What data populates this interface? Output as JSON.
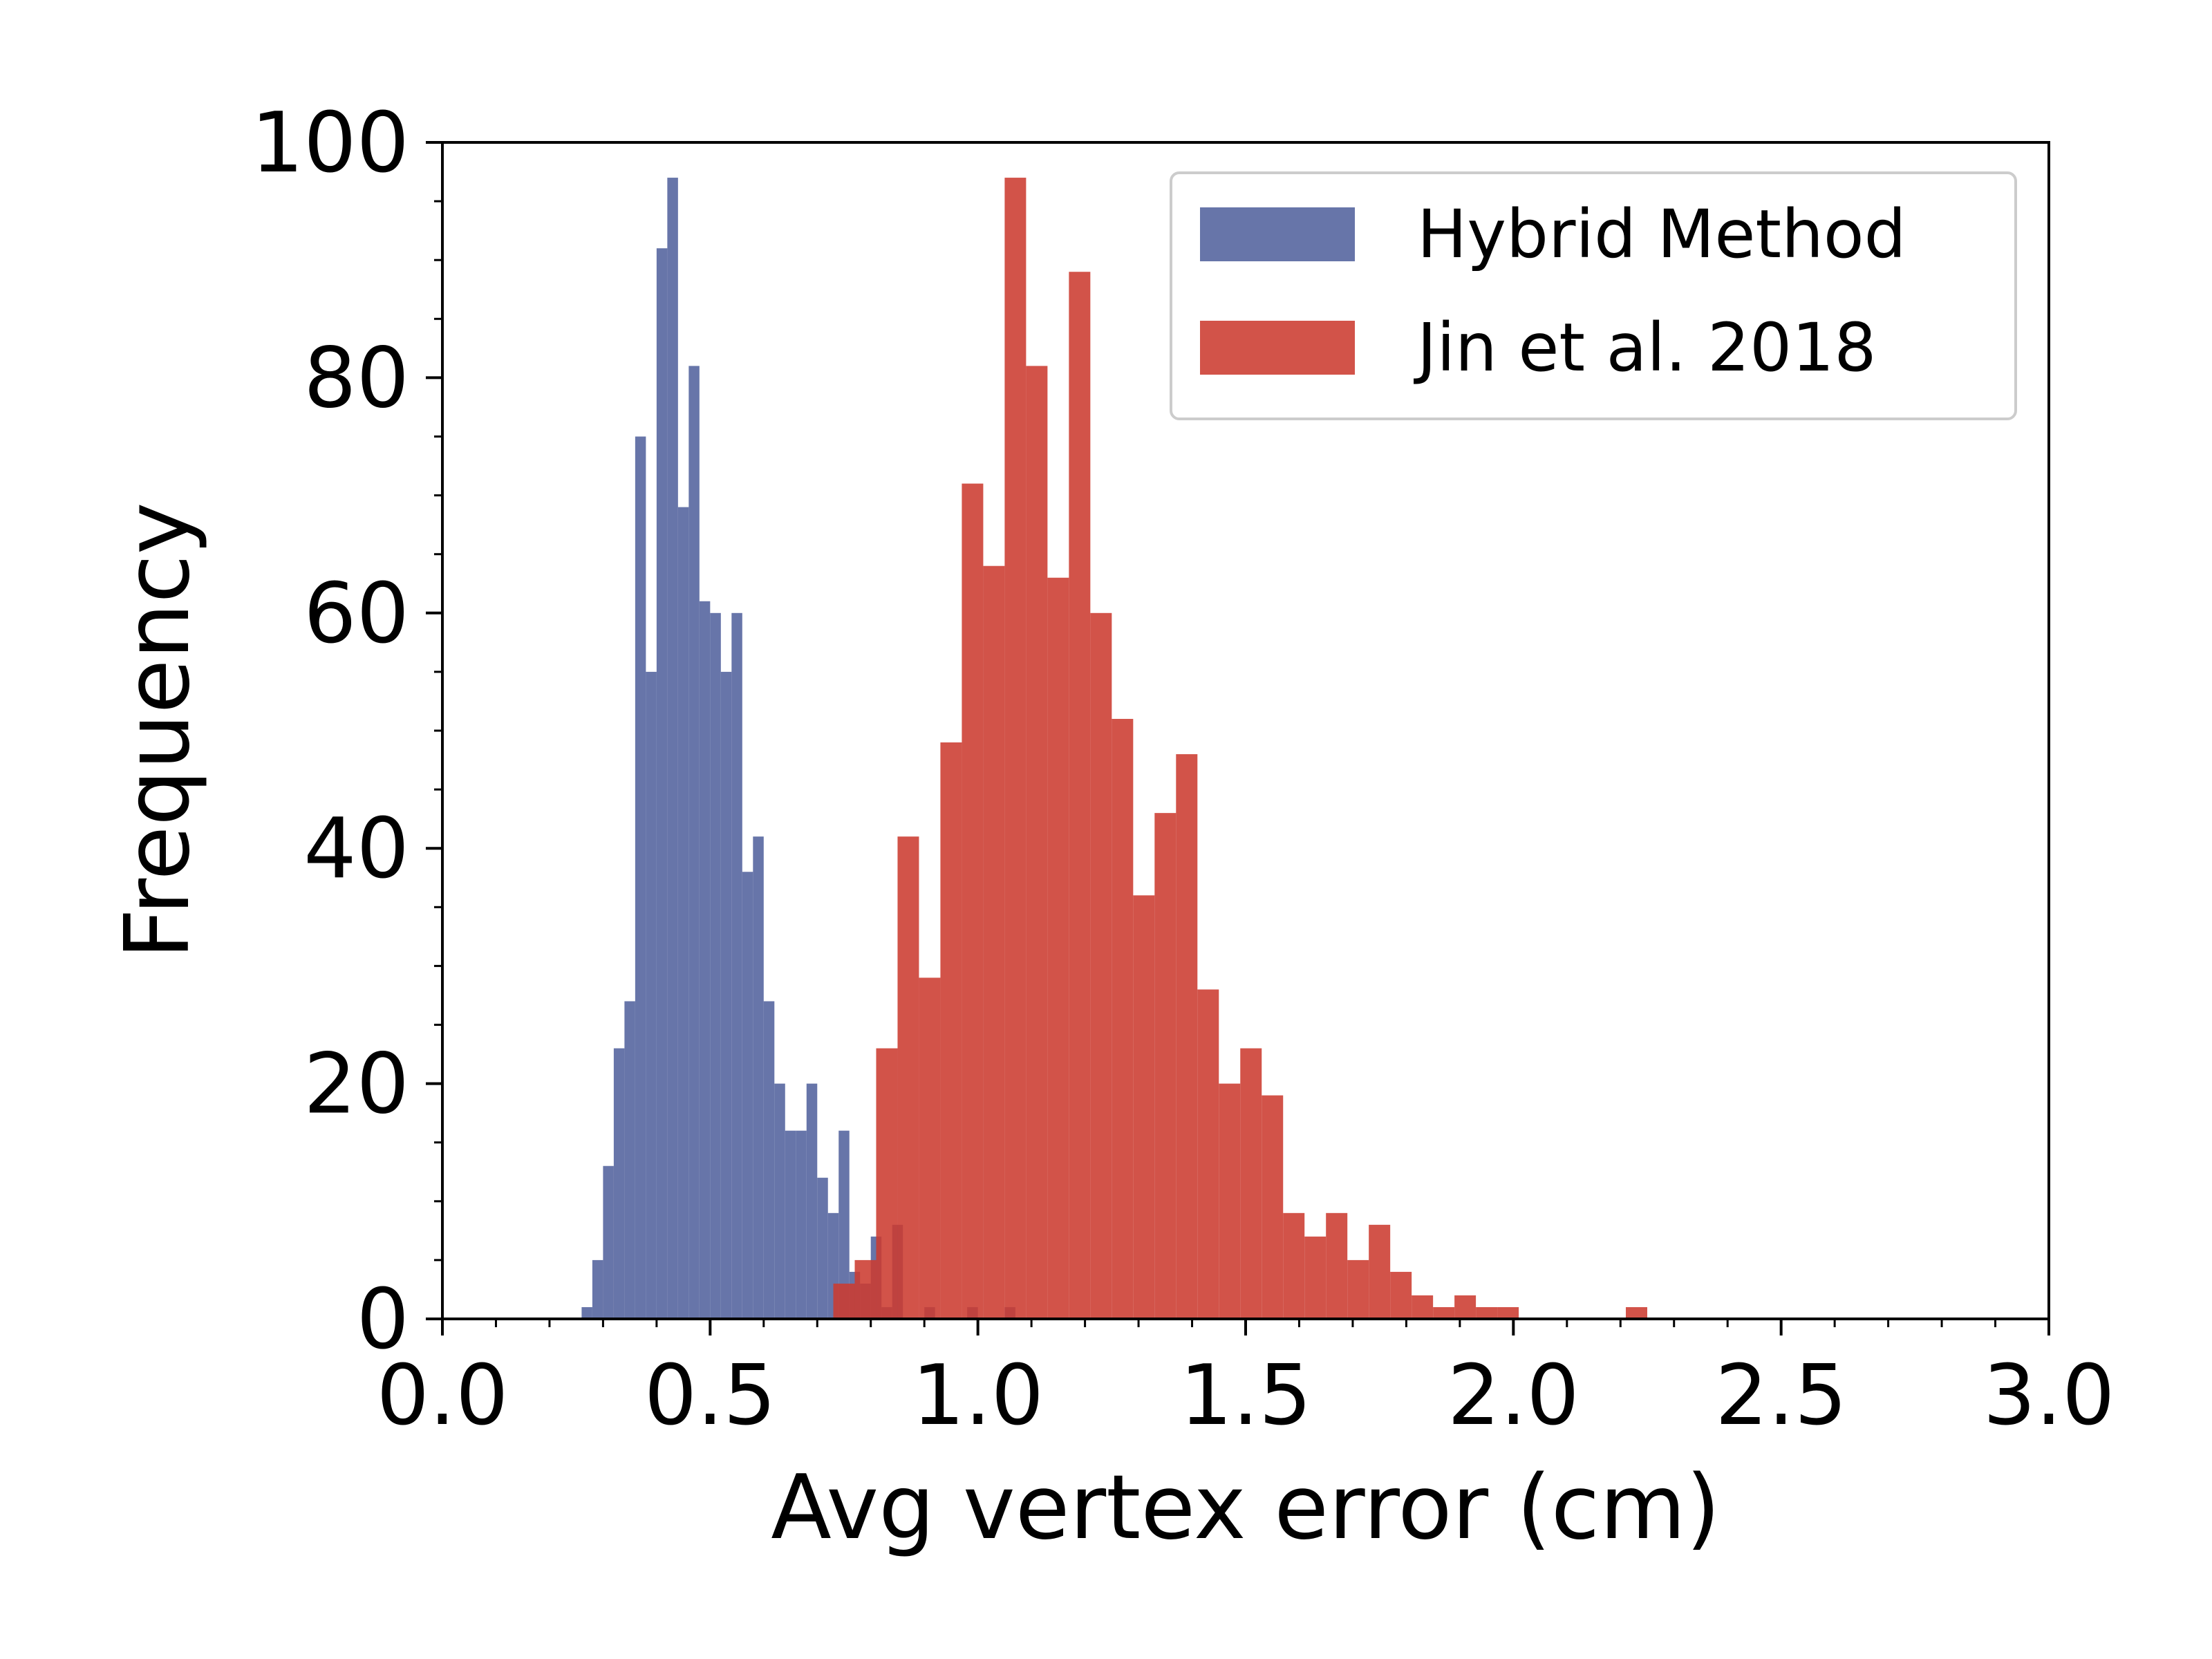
{
  "chart_data": {
    "type": "bar",
    "subtype": "overlaid-histogram",
    "title": "",
    "xlabel": "Avg vertex error (cm)",
    "ylabel": "Frequency",
    "xlim": [
      0,
      3.0
    ],
    "ylim": [
      0,
      100
    ],
    "xticks": [
      "0.0",
      "0.5",
      "1.0",
      "1.5",
      "2.0",
      "2.5",
      "3.0"
    ],
    "yticks": [
      "0",
      "20",
      "40",
      "60",
      "80",
      "100"
    ],
    "grid": false,
    "legend_position": "top-right",
    "series": [
      {
        "name": "Hybrid Method",
        "color": "#4c5d9a",
        "opacity": 0.85,
        "bin_width": 0.02,
        "bins": [
          [
            0.26,
            1
          ],
          [
            0.28,
            5
          ],
          [
            0.3,
            13
          ],
          [
            0.32,
            23
          ],
          [
            0.34,
            27
          ],
          [
            0.36,
            75
          ],
          [
            0.38,
            55
          ],
          [
            0.4,
            91
          ],
          [
            0.42,
            97
          ],
          [
            0.44,
            69
          ],
          [
            0.46,
            81
          ],
          [
            0.48,
            61
          ],
          [
            0.5,
            60
          ],
          [
            0.52,
            55
          ],
          [
            0.54,
            60
          ],
          [
            0.56,
            38
          ],
          [
            0.58,
            41
          ],
          [
            0.6,
            27
          ],
          [
            0.62,
            20
          ],
          [
            0.64,
            16
          ],
          [
            0.66,
            16
          ],
          [
            0.68,
            20
          ],
          [
            0.7,
            12
          ],
          [
            0.72,
            9
          ],
          [
            0.74,
            16
          ],
          [
            0.76,
            4
          ],
          [
            0.78,
            3
          ],
          [
            0.8,
            7
          ],
          [
            0.82,
            1
          ],
          [
            0.84,
            8
          ],
          [
            0.9,
            1
          ],
          [
            0.98,
            1
          ],
          [
            1.05,
            1
          ]
        ]
      },
      {
        "name": "Jin et al. 2018",
        "color": "#cc3b30",
        "opacity": 0.88,
        "bin_width": 0.04,
        "bins": [
          [
            0.73,
            3
          ],
          [
            0.77,
            5
          ],
          [
            0.81,
            23
          ],
          [
            0.85,
            41
          ],
          [
            0.89,
            29
          ],
          [
            0.93,
            49
          ],
          [
            0.97,
            71
          ],
          [
            1.01,
            64
          ],
          [
            1.05,
            97
          ],
          [
            1.09,
            81
          ],
          [
            1.13,
            63
          ],
          [
            1.17,
            89
          ],
          [
            1.21,
            60
          ],
          [
            1.25,
            51
          ],
          [
            1.29,
            36
          ],
          [
            1.33,
            43
          ],
          [
            1.37,
            48
          ],
          [
            1.41,
            28
          ],
          [
            1.45,
            20
          ],
          [
            1.49,
            23
          ],
          [
            1.53,
            19
          ],
          [
            1.57,
            9
          ],
          [
            1.61,
            7
          ],
          [
            1.65,
            9
          ],
          [
            1.69,
            5
          ],
          [
            1.73,
            8
          ],
          [
            1.77,
            4
          ],
          [
            1.81,
            2
          ],
          [
            1.85,
            1
          ],
          [
            1.89,
            2
          ],
          [
            1.93,
            1
          ],
          [
            1.97,
            1
          ],
          [
            2.21,
            1
          ]
        ]
      }
    ]
  }
}
